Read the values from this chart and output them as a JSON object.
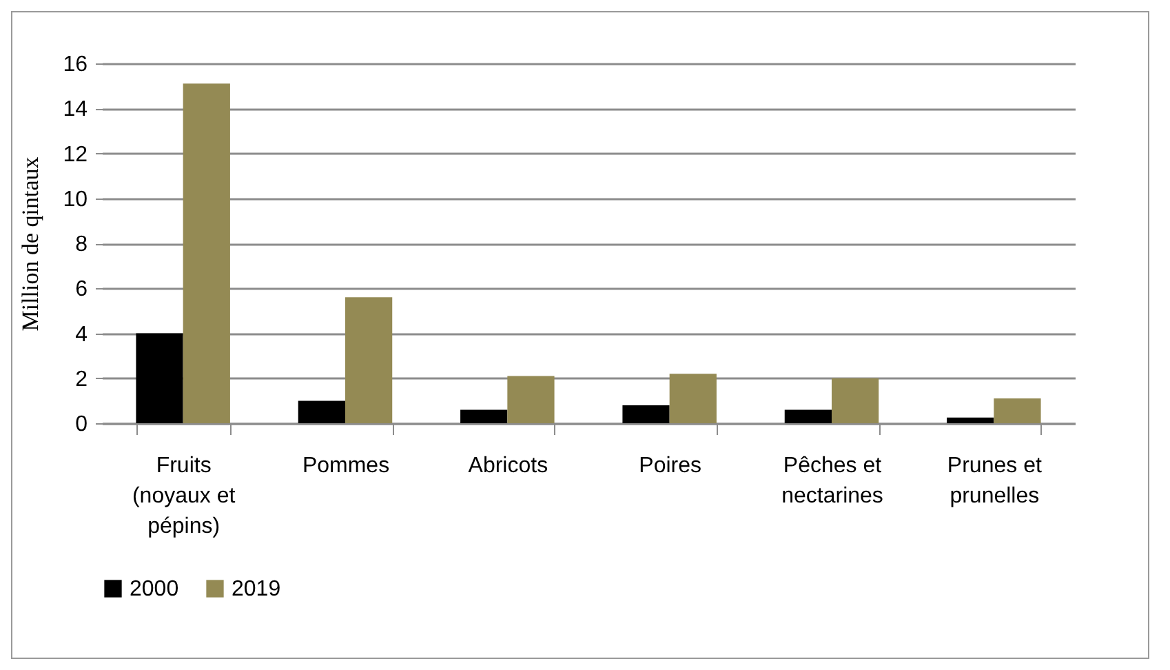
{
  "chart_data": {
    "type": "bar",
    "ylabel": "Million de qintaux",
    "categories": [
      "Fruits (noyaux et pépins)",
      "Pommes",
      "Abricots",
      "Poires",
      "Pêches et nectarines",
      "Prunes et prunelles"
    ],
    "series": [
      {
        "name": "2000",
        "color": "#000000",
        "values": [
          4.0,
          1.0,
          0.6,
          0.8,
          0.6,
          0.25
        ]
      },
      {
        "name": "2019",
        "color": "#948a54",
        "values": [
          15.1,
          5.6,
          2.1,
          2.2,
          2.0,
          1.1
        ]
      }
    ],
    "ylim": [
      0,
      16
    ],
    "yticks": [
      0,
      2,
      4,
      6,
      8,
      10,
      12,
      14,
      16
    ],
    "grid": "y",
    "legend": "bottom"
  }
}
